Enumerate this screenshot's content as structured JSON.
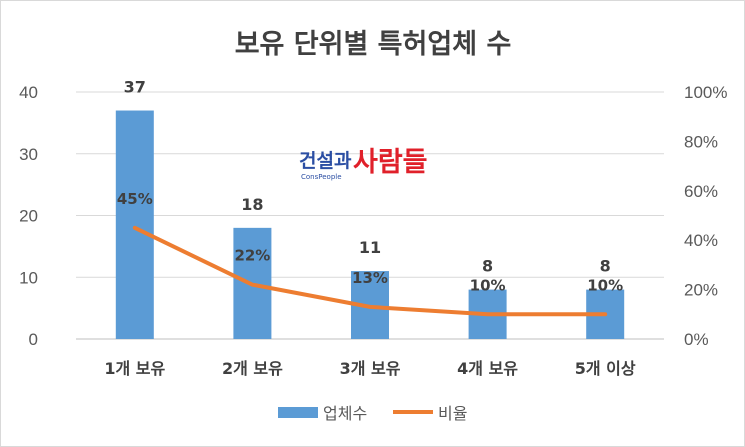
{
  "chart_data": {
    "type": "bar",
    "title": "보유 단위별  특허업체 수",
    "categories": [
      "1개 보유",
      "2개 보유",
      "3개 보유",
      "4개 보유",
      "5개 이상"
    ],
    "series": [
      {
        "name": "업체수",
        "type": "bar",
        "axis": "left",
        "values": [
          37,
          18,
          11,
          8,
          8
        ],
        "labels": [
          "37",
          "18",
          "11",
          "8",
          "8"
        ],
        "color": "#5b9bd5"
      },
      {
        "name": "비율",
        "type": "line",
        "axis": "right",
        "values": [
          45,
          22,
          13,
          10,
          10
        ],
        "labels": [
          "45%",
          "22%",
          "13%",
          "10%",
          "10%"
        ],
        "color": "#ed7d31"
      }
    ],
    "y_left": {
      "min": 0,
      "max": 40,
      "ticks": [
        "0",
        "10",
        "20",
        "30",
        "40"
      ]
    },
    "y_right": {
      "min": 0,
      "max": 100,
      "ticks": [
        "0%",
        "20%",
        "40%",
        "60%",
        "80%",
        "100%"
      ]
    },
    "grid": true,
    "legend": "bottom"
  },
  "watermark": {
    "part1": "건설과",
    "part2": "사람들",
    "sub": "ConsPeople"
  }
}
